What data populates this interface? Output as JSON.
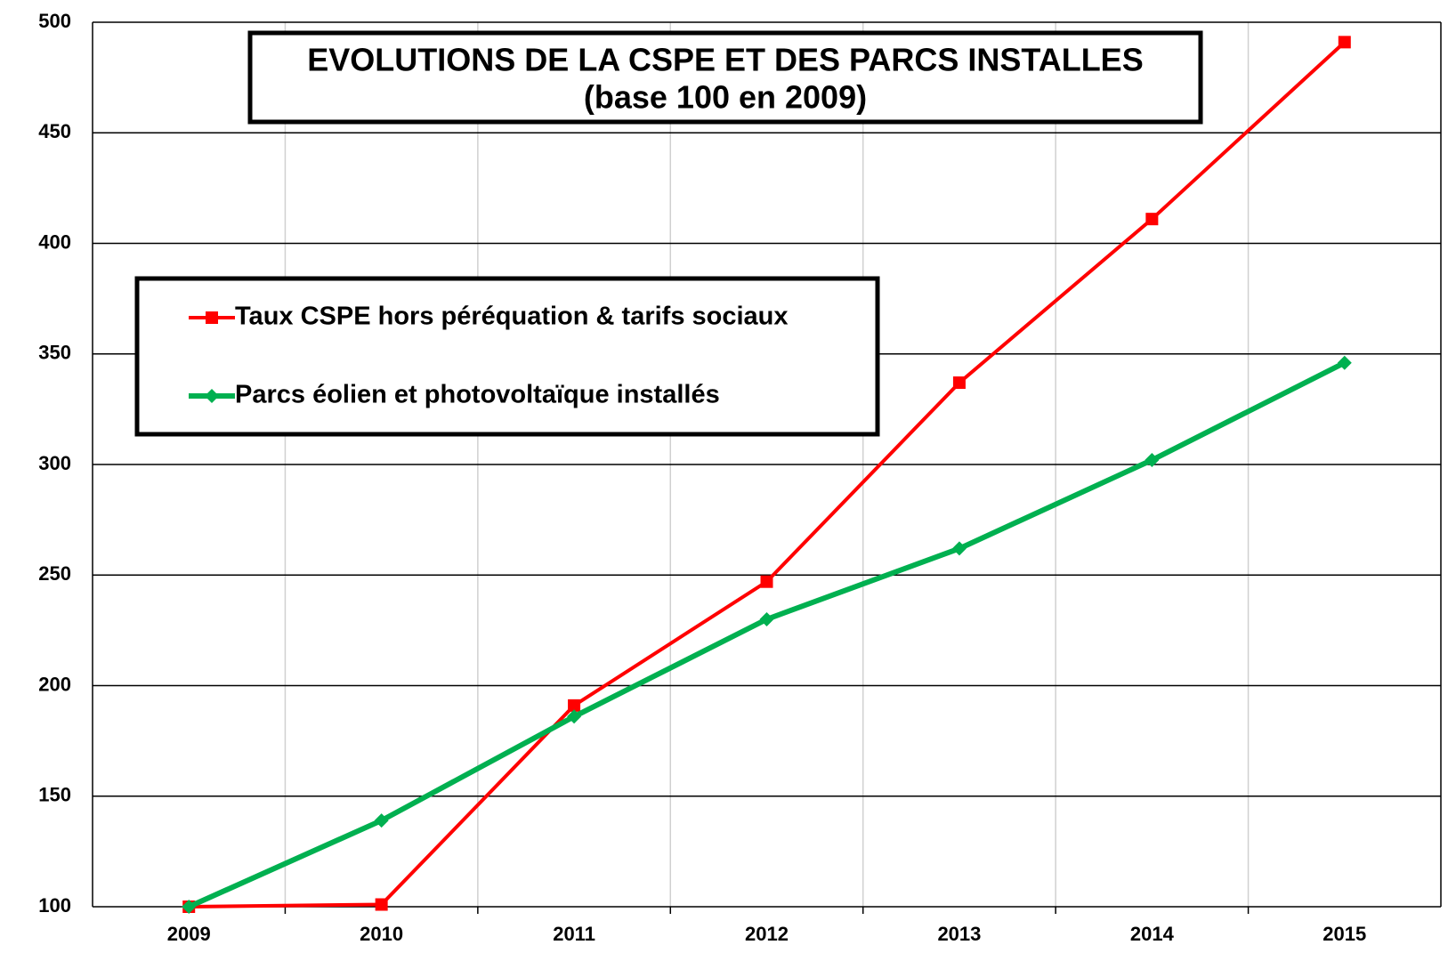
{
  "chart_data": {
    "type": "line",
    "title": "EVOLUTIONS DE LA CSPE ET DES PARCS INSTALLES",
    "subtitle": "(base 100 en 2009)",
    "categories": [
      "2009",
      "2010",
      "2011",
      "2012",
      "2013",
      "2014",
      "2015"
    ],
    "series": [
      {
        "name": "Taux CSPE hors péréquation & tarifs sociaux",
        "color": "#ff0000",
        "marker": "square",
        "values": [
          100,
          101,
          191,
          247,
          337,
          411,
          491
        ]
      },
      {
        "name": "Parcs éolien et photovoltaïque installés",
        "color": "#00b050",
        "marker": "diamond",
        "values": [
          100,
          139,
          186,
          230,
          262,
          302,
          346
        ]
      }
    ],
    "ylim": [
      100,
      500
    ],
    "yticks": [
      100,
      150,
      200,
      250,
      300,
      350,
      400,
      450,
      500
    ],
    "grid": true
  }
}
